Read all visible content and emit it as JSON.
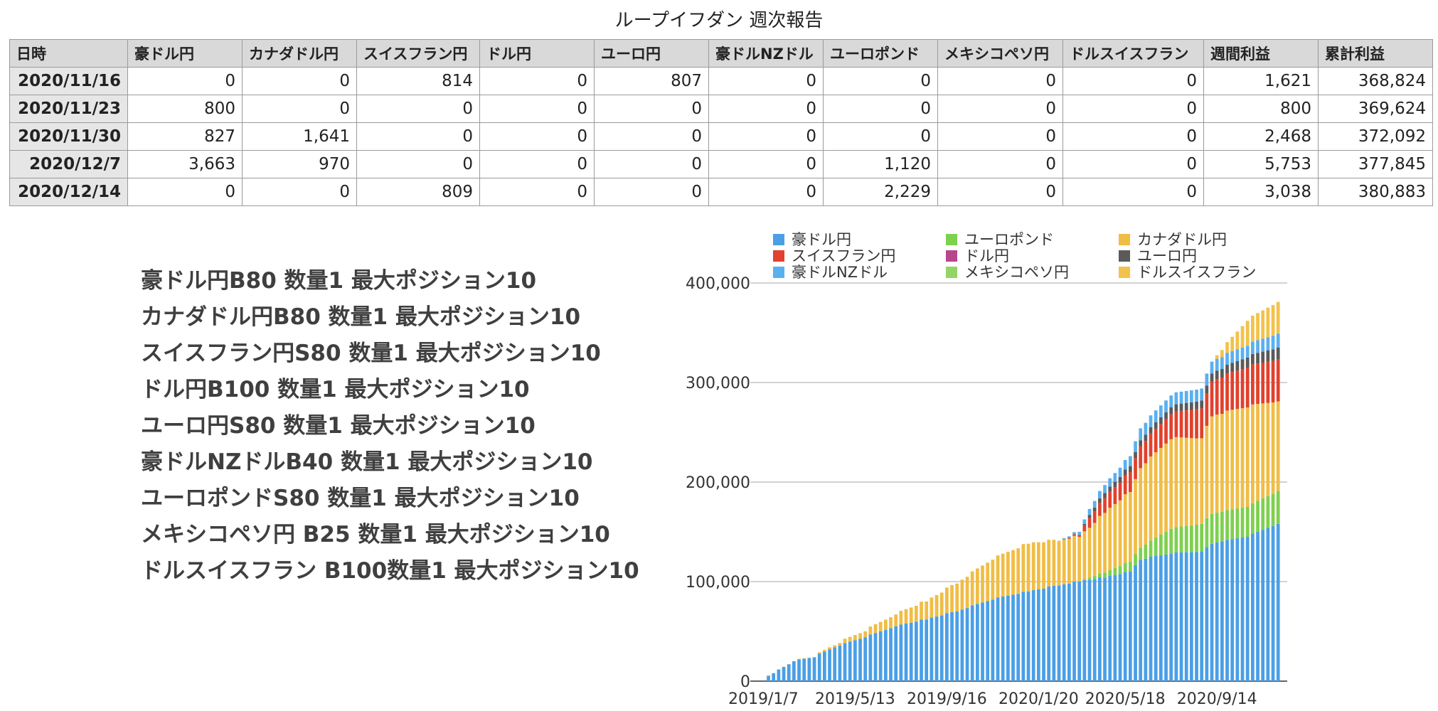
{
  "report": {
    "title": "ループイフダン 週次報告",
    "columns": [
      "日時",
      "豪ドル円",
      "カナダドル円",
      "スイスフラン円",
      "ドル円",
      "ユーロ円",
      "豪ドルNZドル",
      "ユーロポンド",
      "メキシコペソ円",
      "ドルスイスフラン",
      "週間利益",
      "累計利益"
    ],
    "rows": [
      [
        "2020/11/16",
        "0",
        "0",
        "814",
        "0",
        "807",
        "0",
        "0",
        "0",
        "0",
        "1,621",
        "368,824"
      ],
      [
        "2020/11/23",
        "800",
        "0",
        "0",
        "0",
        "0",
        "0",
        "0",
        "0",
        "0",
        "800",
        "369,624"
      ],
      [
        "2020/11/30",
        "827",
        "1,641",
        "0",
        "0",
        "0",
        "0",
        "0",
        "0",
        "0",
        "2,468",
        "372,092"
      ],
      [
        "2020/12/7",
        "3,663",
        "970",
        "0",
        "0",
        "0",
        "0",
        "1,120",
        "0",
        "0",
        "5,753",
        "377,845"
      ],
      [
        "2020/12/14",
        "0",
        "0",
        "809",
        "0",
        "0",
        "0",
        "2,229",
        "0",
        "0",
        "3,038",
        "380,883"
      ]
    ]
  },
  "settings": [
    "豪ドル円B80 数量1 最大ポジション10",
    "カナダドル円B80 数量1 最大ポジション10",
    "スイスフラン円S80 数量1 最大ポジション10",
    "ドル円B100 数量1 最大ポジション10",
    "ユーロ円S80 数量1 最大ポジション10",
    "豪ドルNZドルB40 数量1 最大ポジション10",
    "ユーロポンドS80 数量1 最大ポジション10",
    "メキシコペソ円 B25 数量1 最大ポジション10",
    "ドルスイスフラン B100数量1 最大ポジション10"
  ],
  "chart_data": {
    "type": "bar",
    "stacked": true,
    "title": "",
    "xlabel": "",
    "ylabel": "",
    "ylim": [
      0,
      400000
    ],
    "y_ticks": [
      0,
      100000,
      200000,
      300000,
      400000
    ],
    "y_tick_labels": [
      "0",
      "100,000",
      "200,000",
      "300,000",
      "400,000"
    ],
    "x_tick_labels": [
      "2019/1/7",
      "2019/5/13",
      "2019/9/16",
      "2020/1/20",
      "2020/5/18",
      "2020/9/14"
    ],
    "x_tick_indices": [
      0,
      18,
      36,
      54,
      71,
      89
    ],
    "legend_position": "top",
    "grid": true,
    "series": [
      {
        "name": "豪ドル円",
        "color": "#4a9fe6"
      },
      {
        "name": "ユーロポンド",
        "color": "#7ed04f"
      },
      {
        "name": "カナダドル円",
        "color": "#f0bd45"
      },
      {
        "name": "スイスフラン円",
        "color": "#e2412d"
      },
      {
        "name": "ドル円",
        "color": "#b8468c"
      },
      {
        "name": "ユーロ円",
        "color": "#5a5a5a"
      },
      {
        "name": "豪ドルNZドル",
        "color": "#5ab0f0"
      },
      {
        "name": "メキシコペソ円",
        "color": "#94d666"
      },
      {
        "name": "ドルスイスフラン",
        "color": "#f3c24a"
      }
    ],
    "weeks": 102,
    "cumulative_keyframes": [
      {
        "week": 0,
        "豪ドル円": 0,
        "カナダドル円": 0
      },
      {
        "week": 2,
        "豪ドル円": 8000,
        "カナダドル円": 0
      },
      {
        "week": 6,
        "豪ドル円": 20000,
        "カナダドル円": 0
      },
      {
        "week": 10,
        "豪ドル円": 24000,
        "カナダドル円": 0
      },
      {
        "week": 14,
        "豪ドル円": 34000,
        "カナダドル円": 2000
      },
      {
        "week": 20,
        "豪ドル円": 44000,
        "カナダドル円": 6000
      },
      {
        "week": 26,
        "豪ドル円": 55000,
        "カナダドル円": 12000
      },
      {
        "week": 32,
        "豪ドル円": 62000,
        "カナダドル円": 18000
      },
      {
        "week": 38,
        "豪ドル円": 70000,
        "カナダドル円": 28000
      },
      {
        "week": 45,
        "豪ドル円": 82000,
        "カナダドル円": 40000
      },
      {
        "week": 52,
        "豪ドル円": 90000,
        "カナダドル円": 48000
      },
      {
        "week": 58,
        "豪ドル円": 96000,
        "カナダドル円": 45000
      },
      {
        "week": 62,
        "豪ドル円": 100000,
        "カナダドル円": 45000,
        "スイスフラン円": 2000,
        "豪ドルNZドル": 3000
      },
      {
        "week": 64,
        "豪ドル円": 102000,
        "ユーロポンド": 2000,
        "カナダドル円": 50000,
        "スイスフラン円": 10000,
        "ユーロ円": 3000,
        "豪ドルNZドル": 6000
      },
      {
        "week": 67,
        "豪ドル円": 104000,
        "ユーロポンド": 5000,
        "カナダドル円": 60000,
        "スイスフラン円": 15000,
        "ユーロ円": 5000,
        "豪ドルNZドル": 8000
      },
      {
        "week": 72,
        "豪ドル円": 110000,
        "ユーロポンド": 10000,
        "カナダドル円": 70000,
        "スイスフラン円": 20000,
        "ユーロ円": 6000,
        "豪ドルNZドル": 10000
      },
      {
        "week": 74,
        "豪ドル円": 122000,
        "ユーロポンド": 12000,
        "カナダドル円": 80000,
        "スイスフラン円": 22000,
        "ユーロ円": 6000,
        "豪ドルNZドル": 12000
      },
      {
        "week": 80,
        "豪ドル円": 128000,
        "ユーロポンド": 25000,
        "カナダドル円": 90000,
        "スイスフラン円": 25000,
        "ユーロ円": 7000,
        "豪ドルNZドル": 12000
      },
      {
        "week": 86,
        "豪ドル円": 130000,
        "ユーロポンド": 28000,
        "カナダドル円": 86000,
        "スイスフラン円": 30000,
        "ユーロ円": 8000,
        "豪ドルNZドル": 12000
      },
      {
        "week": 88,
        "豪ドル円": 138000,
        "ユーロポンド": 30000,
        "カナダドル円": 98000,
        "スイスフラン円": 35000,
        "ユーロ円": 8000,
        "豪ドルNZドル": 12000
      },
      {
        "week": 95,
        "豪ドル円": 145000,
        "ユーロポンド": 30000,
        "カナダドル円": 100000,
        "スイスフラン円": 40000,
        "ユーロ円": 10000,
        "豪ドルNZドル": 12000,
        "ドルスイスフラン": 25000
      },
      {
        "week": 101,
        "豪ドル円": 158000,
        "ユーロポンド": 33000,
        "カナダドル円": 90000,
        "スイスフラン円": 42000,
        "ユーロ円": 12000,
        "豪ドルNZドル": 14000,
        "ドルスイスフラン": 32000
      }
    ]
  }
}
